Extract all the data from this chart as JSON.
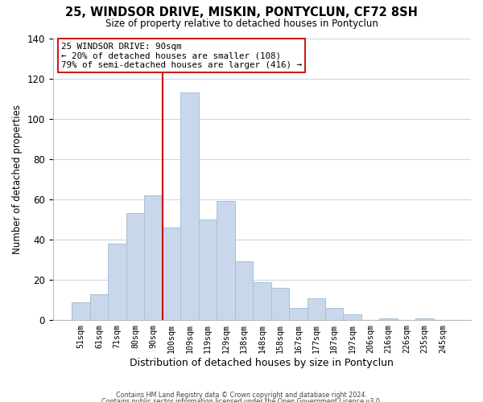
{
  "title": "25, WINDSOR DRIVE, MISKIN, PONTYCLUN, CF72 8SH",
  "subtitle": "Size of property relative to detached houses in Pontyclun",
  "xlabel": "Distribution of detached houses by size in Pontyclun",
  "ylabel": "Number of detached properties",
  "bar_labels": [
    "51sqm",
    "61sqm",
    "71sqm",
    "80sqm",
    "90sqm",
    "100sqm",
    "109sqm",
    "119sqm",
    "129sqm",
    "138sqm",
    "148sqm",
    "158sqm",
    "167sqm",
    "177sqm",
    "187sqm",
    "197sqm",
    "206sqm",
    "216sqm",
    "226sqm",
    "235sqm",
    "245sqm"
  ],
  "bar_values": [
    9,
    13,
    38,
    53,
    62,
    46,
    113,
    50,
    59,
    29,
    19,
    16,
    6,
    11,
    6,
    3,
    0,
    1,
    0,
    1,
    0
  ],
  "bar_color": "#c8d8ea",
  "bar_edge_color": "#a8c0d4",
  "vline_color": "#cc0000",
  "annotation_text": "25 WINDSOR DRIVE: 90sqm\n← 20% of detached houses are smaller (108)\n79% of semi-detached houses are larger (416) →",
  "annotation_box_color": "#ffffff",
  "annotation_box_edge": "#cc0000",
  "ylim": [
    0,
    140
  ],
  "yticks": [
    0,
    20,
    40,
    60,
    80,
    100,
    120,
    140
  ],
  "footer1": "Contains HM Land Registry data © Crown copyright and database right 2024.",
  "footer2": "Contains public sector information licensed under the Open Government Licence v3.0.",
  "background_color": "#ffffff",
  "grid_color": "#ccd8e4"
}
